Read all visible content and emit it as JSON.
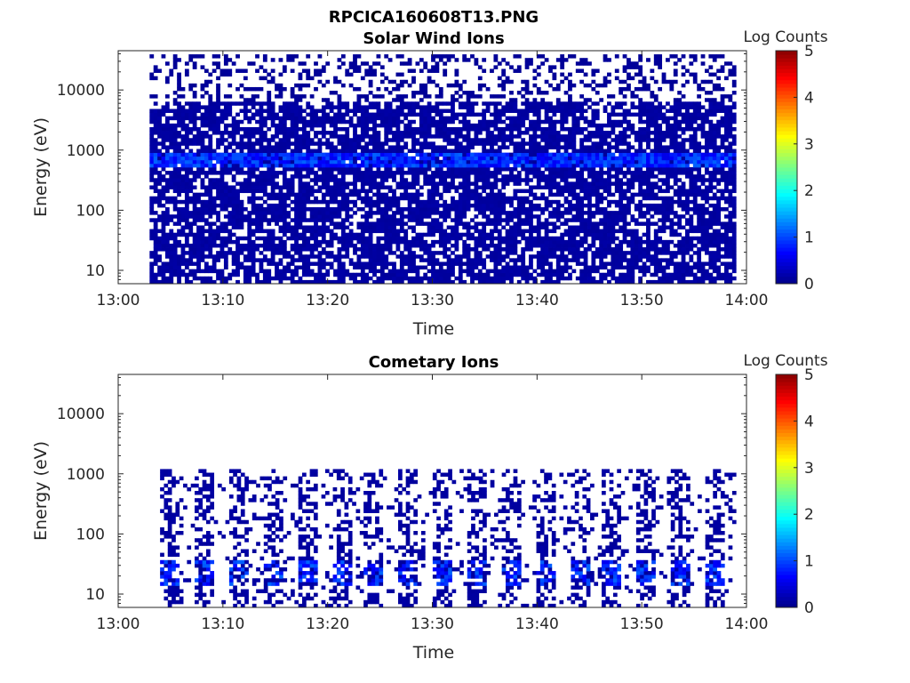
{
  "figure_title": "RPCICA160608T13.PNG",
  "colors": {
    "background": "#ffffff",
    "axes": "#262626",
    "colormap": [
      "#00008f",
      "#0000ff",
      "#0080ff",
      "#00ffff",
      "#80ff80",
      "#ffff00",
      "#ff8000",
      "#ff0000",
      "#800000"
    ]
  },
  "chart_data": [
    {
      "type": "heatmap",
      "title": "Solar Wind Ions",
      "xlabel": "Time",
      "ylabel": "Energy (eV)",
      "x_range": [
        "13:00",
        "14:00"
      ],
      "x_ticks": [
        "13:00",
        "13:10",
        "13:20",
        "13:30",
        "13:40",
        "13:50",
        "14:00"
      ],
      "y_scale": "log",
      "y_range": [
        6,
        45000
      ],
      "y_ticks": [
        "10",
        "100",
        "1000",
        "10000"
      ],
      "colorbar": {
        "label": "Log Counts",
        "range": [
          0,
          5
        ],
        "ticks": [
          "0",
          "1",
          "2",
          "3",
          "4",
          "5"
        ]
      },
      "data_start": "13:03",
      "data_end": "13:59",
      "features": [
        {
          "energy_min": 6,
          "energy_max": 6000,
          "log_counts": 0.1,
          "coverage": 0.75
        },
        {
          "energy_min": 6000,
          "energy_max": 40000,
          "log_counts": 0.05,
          "coverage": 0.3
        },
        {
          "energy_min": 550,
          "energy_max": 900,
          "log_counts": 0.8,
          "coverage": 0.9
        }
      ]
    },
    {
      "type": "heatmap",
      "title": "Cometary Ions",
      "xlabel": "Time",
      "ylabel": "Energy (eV)",
      "x_range": [
        "13:00",
        "14:00"
      ],
      "x_ticks": [
        "13:00",
        "13:10",
        "13:20",
        "13:30",
        "13:40",
        "13:50",
        "14:00"
      ],
      "y_scale": "log",
      "y_range": [
        6,
        45000
      ],
      "y_ticks": [
        "10",
        "100",
        "1000",
        "10000"
      ],
      "colorbar": {
        "label": "Log Counts",
        "range": [
          0,
          5
        ],
        "ticks": [
          "0",
          "1",
          "2",
          "3",
          "4",
          "5"
        ]
      },
      "data_start": "13:04",
      "data_end": "13:59",
      "features": [
        {
          "energy_min": 6,
          "energy_max": 1200,
          "log_counts": 0.1,
          "coverage": 0.45
        },
        {
          "energy_min": 14,
          "energy_max": 35,
          "log_counts": 0.8,
          "coverage": 0.5
        }
      ]
    }
  ]
}
